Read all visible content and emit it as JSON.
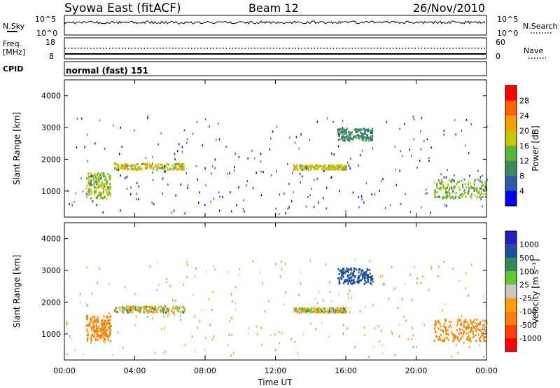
{
  "header": {
    "station": "Syowa East (fitACF)",
    "beam": "Beam 12",
    "date": "26/Nov/2010"
  },
  "strips": {
    "nsky": {
      "label": "N.Sky",
      "right_label": "N.Search",
      "left_ticks": [
        "10^5",
        "10^0"
      ],
      "right_ticks": [
        "10^5",
        "10^0"
      ]
    },
    "freq": {
      "label_line1": "Freq.",
      "label_line2": "[MHz]",
      "right_label": "Nave",
      "left_ticks": [
        "18",
        "8"
      ],
      "right_ticks": [
        "60",
        "0"
      ]
    },
    "cpid": {
      "label": "CPID",
      "value": "normal (fast) 151"
    }
  },
  "colors": {
    "power": [
      "#0000ff",
      "#2e5aa8",
      "#3c8c5a",
      "#5ab43c",
      "#c8c800",
      "#f5a000",
      "#ff6400",
      "#ff0000"
    ],
    "velocity": [
      "#ff0000",
      "#ff4000",
      "#ff8000",
      "#ffa000",
      "#c8c8c8",
      "#64c832",
      "#2e8b57",
      "#2050a0",
      "#2020c0"
    ]
  },
  "chart_data": [
    {
      "type": "heatmap",
      "name": "power",
      "ylabel": "Slant Range [km]",
      "xlabel": "Time UT",
      "x_ticks": [
        "00:00",
        "04:00",
        "08:00",
        "12:00",
        "16:00",
        "20:00",
        "00:00"
      ],
      "y_ticks": [
        1000,
        2000,
        3000,
        4000
      ],
      "ylim": [
        180,
        4500
      ],
      "xlim_hours": [
        0,
        24
      ],
      "colorbar": {
        "label": "Power [dB]",
        "ticks": [
          4,
          8,
          12,
          16,
          20,
          24,
          28
        ],
        "range": [
          0,
          32
        ]
      },
      "regions": [
        {
          "t": [
            1.2,
            2.6
          ],
          "r": [
            800,
            1600
          ],
          "value": 16
        },
        {
          "t": [
            2.8,
            6.8
          ],
          "r": [
            1700,
            1900
          ],
          "value": 18
        },
        {
          "t": [
            13.0,
            16.0
          ],
          "r": [
            1700,
            1850
          ],
          "value": 18
        },
        {
          "t": [
            21.0,
            24.0
          ],
          "r": [
            800,
            1400
          ],
          "value": 14
        },
        {
          "t": [
            15.5,
            17.5
          ],
          "r": [
            2600,
            3000
          ],
          "value": 10
        }
      ]
    },
    {
      "type": "heatmap",
      "name": "velocity",
      "ylabel": "Slant Range [km]",
      "xlabel": "Time UT",
      "x_ticks": [
        "00:00",
        "04:00",
        "08:00",
        "12:00",
        "16:00",
        "20:00",
        "00:00"
      ],
      "y_ticks": [
        1000,
        2000,
        3000,
        4000
      ],
      "ylim": [
        180,
        4500
      ],
      "xlim_hours": [
        0,
        24
      ],
      "colorbar": {
        "label": "Velocity [m s⁻¹]",
        "ticks": [
          "1000",
          "500",
          "100",
          "25",
          "-25",
          "-100",
          "-500",
          "-1000"
        ]
      },
      "regions": [
        {
          "t": [
            1.2,
            2.6
          ],
          "r": [
            800,
            1600
          ],
          "value": -300
        },
        {
          "t": [
            2.8,
            6.8
          ],
          "r": [
            1700,
            1900
          ],
          "value": 0
        },
        {
          "t": [
            13.0,
            16.0
          ],
          "r": [
            1700,
            1850
          ],
          "value": 0
        },
        {
          "t": [
            21.0,
            24.0
          ],
          "r": [
            800,
            1500
          ],
          "value": -300
        },
        {
          "t": [
            15.5,
            17.5
          ],
          "r": [
            2600,
            3100
          ],
          "value": 700
        }
      ]
    }
  ]
}
